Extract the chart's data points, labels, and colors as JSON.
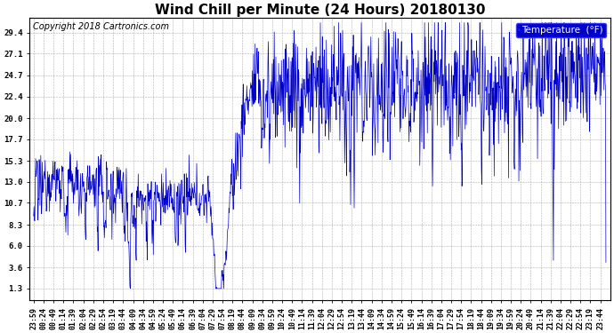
{
  "title": "Wind Chill per Minute (24 Hours) 20180130",
  "copyright": "Copyright 2018 Cartronics.com",
  "legend_label": "Temperature  (°F)",
  "legend_bg": "#0000cc",
  "legend_fg": "#ffffff",
  "line_color": "#0000cc",
  "bg_color": "#ffffff",
  "grid_color": "#999999",
  "yticks": [
    1.3,
    3.6,
    6.0,
    8.3,
    10.7,
    13.0,
    15.3,
    17.7,
    20.0,
    22.4,
    24.7,
    27.1,
    29.4
  ],
  "ylim": [
    0.0,
    31.0
  ],
  "title_fontsize": 11,
  "copyright_fontsize": 7,
  "tick_fontsize": 6.5,
  "legend_fontsize": 7.5
}
